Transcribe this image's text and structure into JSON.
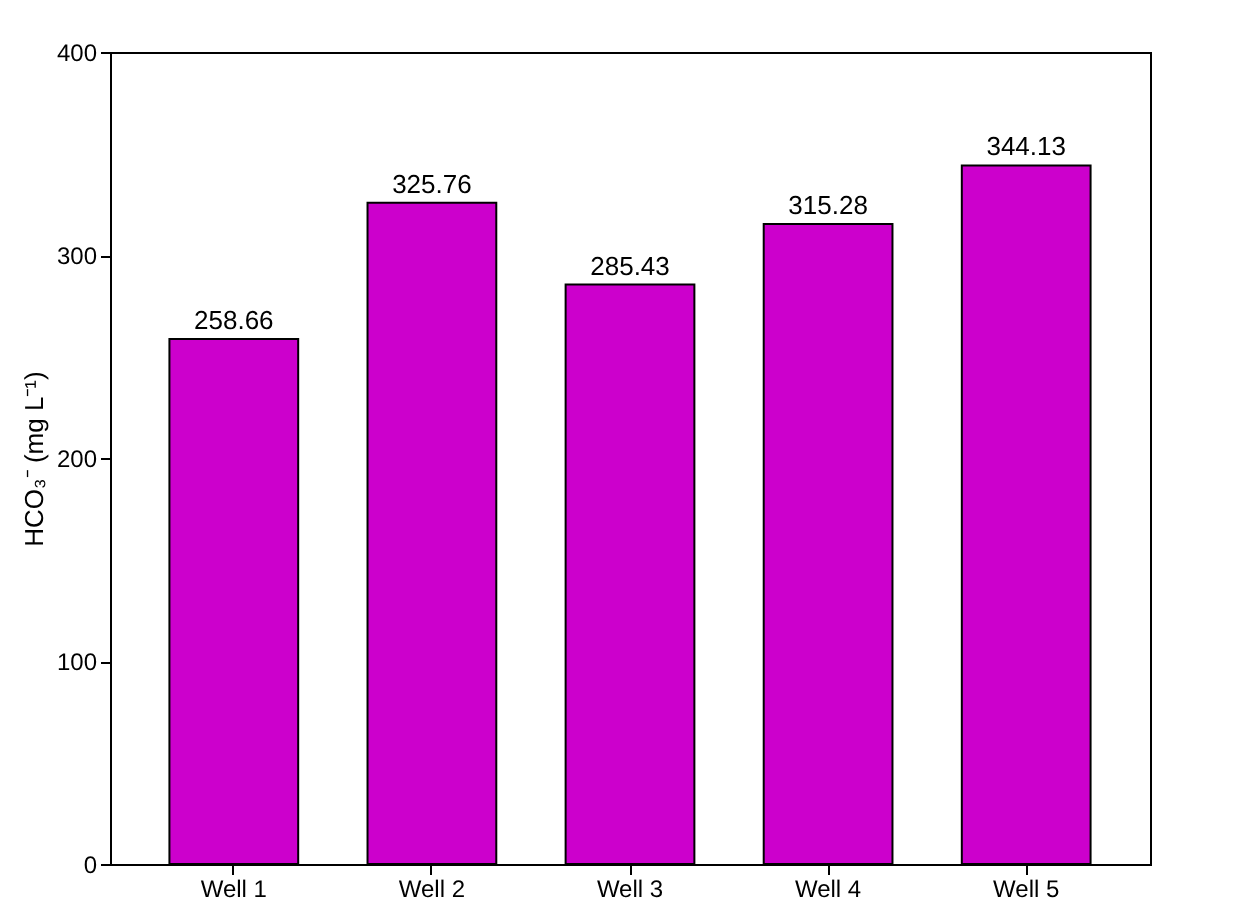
{
  "chart_data": {
    "type": "bar",
    "ylabel": "HCO₃⁻ (mg L⁻¹)",
    "categories": [
      "Well 1",
      "Well 2",
      "Well 3",
      "Well 4",
      "Well 5"
    ],
    "values": [
      258.66,
      325.76,
      285.43,
      315.28,
      344.13
    ],
    "color": "#cc00cc",
    "ylim": [
      0,
      400
    ],
    "yticks": [
      0,
      100,
      200,
      300,
      400
    ],
    "data_labels": true,
    "grid": false
  }
}
